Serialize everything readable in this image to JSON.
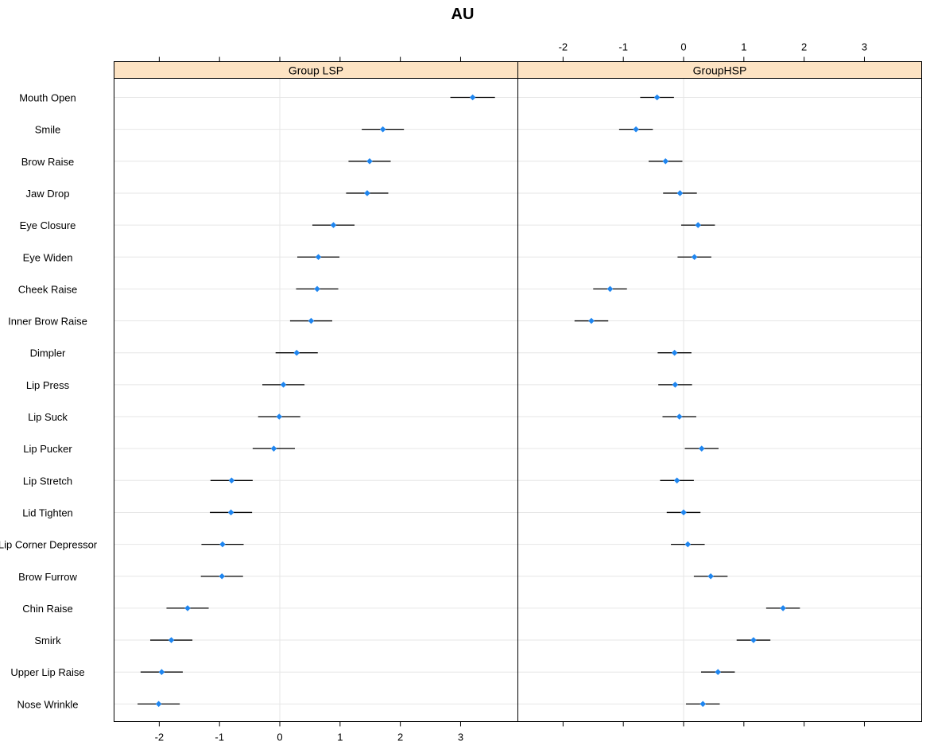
{
  "chart_data": {
    "type": "dotplot",
    "title": "AU",
    "categories": [
      "Mouth Open",
      "Smile",
      "Brow Raise",
      "Jaw Drop",
      "Eye Closure",
      "Eye Widen",
      "Cheek Raise",
      "Inner Brow Raise",
      "Dimpler",
      "Lip Press",
      "Lip Suck",
      "Lip Pucker",
      "Lip Stretch",
      "Lid Tighten",
      "Lip Corner Depressor",
      "Brow Furrow",
      "Chin Raise",
      "Smirk",
      "Upper Lip Raise",
      "Nose Wrinkle"
    ],
    "xlim": [
      -2.75,
      3.95
    ],
    "ticks": [
      -2,
      -1,
      0,
      1,
      2,
      3
    ],
    "grid": true,
    "panels": [
      {
        "name": "Group LSP",
        "tick_side": "bottom",
        "estimates": [
          3.2,
          1.71,
          1.49,
          1.45,
          0.89,
          0.64,
          0.62,
          0.52,
          0.28,
          0.06,
          -0.01,
          -0.1,
          -0.8,
          -0.81,
          -0.95,
          -0.96,
          -1.53,
          -1.8,
          -1.96,
          -2.01
        ],
        "lower": [
          2.83,
          1.36,
          1.14,
          1.1,
          0.54,
          0.29,
          0.27,
          0.17,
          -0.07,
          -0.29,
          -0.36,
          -0.45,
          -1.15,
          -1.16,
          -1.3,
          -1.31,
          -1.88,
          -2.15,
          -2.31,
          -2.36
        ],
        "upper": [
          3.57,
          2.06,
          1.84,
          1.8,
          1.24,
          0.99,
          0.97,
          0.87,
          0.63,
          0.41,
          0.34,
          0.25,
          -0.45,
          -0.46,
          -0.6,
          -0.61,
          -1.18,
          -1.45,
          -1.61,
          -1.66
        ]
      },
      {
        "name": "GroupHSP",
        "tick_side": "top",
        "estimates": [
          -0.44,
          -0.79,
          -0.3,
          -0.06,
          0.24,
          0.18,
          -1.22,
          -1.53,
          -0.15,
          -0.14,
          -0.07,
          0.3,
          -0.11,
          0.0,
          0.07,
          0.45,
          1.65,
          1.16,
          0.57,
          0.32
        ],
        "lower": [
          -0.72,
          -1.07,
          -0.58,
          -0.34,
          -0.04,
          -0.1,
          -1.5,
          -1.81,
          -0.43,
          -0.42,
          -0.35,
          0.02,
          -0.39,
          -0.28,
          -0.21,
          0.17,
          1.37,
          0.88,
          0.29,
          0.04
        ],
        "upper": [
          -0.16,
          -0.51,
          -0.02,
          0.22,
          0.52,
          0.46,
          -0.94,
          -1.25,
          0.13,
          0.14,
          0.21,
          0.58,
          0.17,
          0.28,
          0.35,
          0.73,
          1.93,
          1.44,
          0.85,
          0.6
        ]
      }
    ],
    "colors": {
      "point": "#1f86f0",
      "errorbar": "#000000",
      "strip": "#fde3c3",
      "grid": "#e6e6e6",
      "frame": "#000000"
    }
  }
}
